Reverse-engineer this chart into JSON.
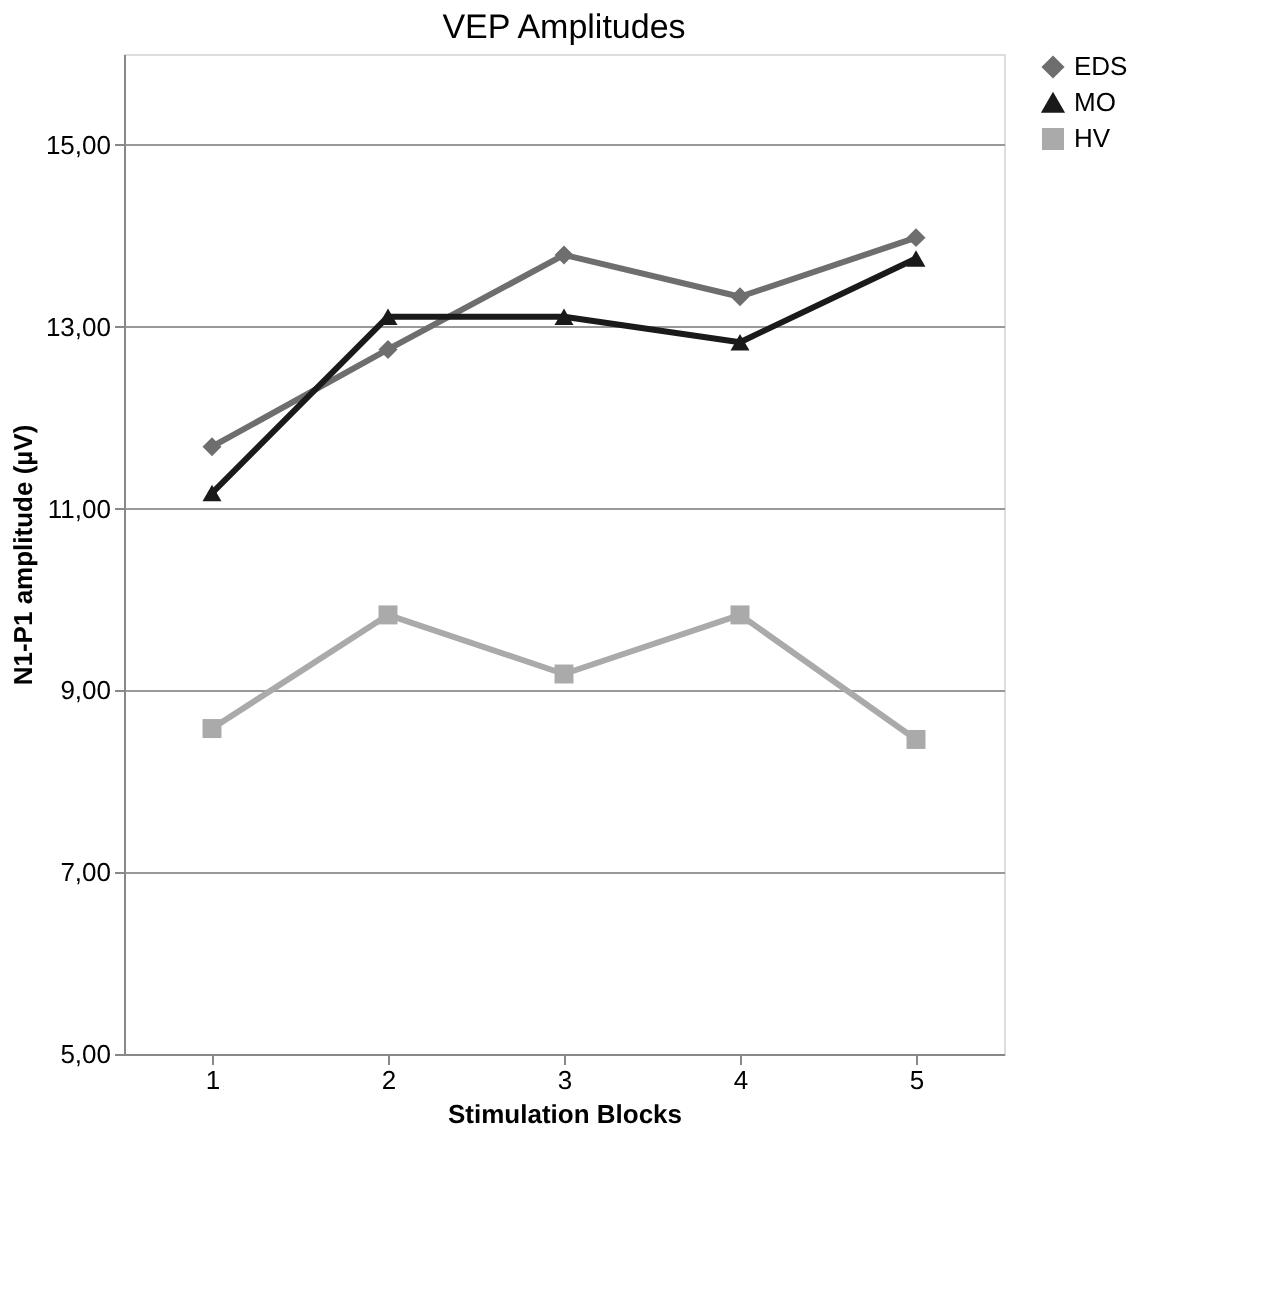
{
  "chart_data": {
    "type": "line",
    "title": "VEP Amplitudes",
    "xlabel": "Stimulation Blocks",
    "ylabel": "N1-P1 amplitude (µV)",
    "categories": [
      "1",
      "2",
      "3",
      "4",
      "5"
    ],
    "series": [
      {
        "name": "EDS",
        "color": "#6e6e6e",
        "marker": "diamond",
        "values": [
          11.68,
          12.75,
          13.79,
          13.33,
          13.98
        ]
      },
      {
        "name": "MO",
        "color": "#1a1a1a",
        "marker": "triangle",
        "values": [
          11.17,
          13.11,
          13.11,
          12.83,
          13.75
        ]
      },
      {
        "name": "HV",
        "color": "#aaaaaa",
        "marker": "square",
        "values": [
          8.58,
          9.83,
          9.18,
          9.83,
          8.46
        ]
      }
    ],
    "ylim": [
      5,
      16
    ],
    "yticks": [
      {
        "value": 5,
        "label": "5,00"
      },
      {
        "value": 7,
        "label": "7,00"
      },
      {
        "value": 9,
        "label": "9,00"
      },
      {
        "value": 11,
        "label": "11,00"
      },
      {
        "value": 13,
        "label": "13,00"
      },
      {
        "value": 15,
        "label": "15,00"
      }
    ],
    "grid": "y",
    "legend": "right",
    "line_style": "solid"
  }
}
